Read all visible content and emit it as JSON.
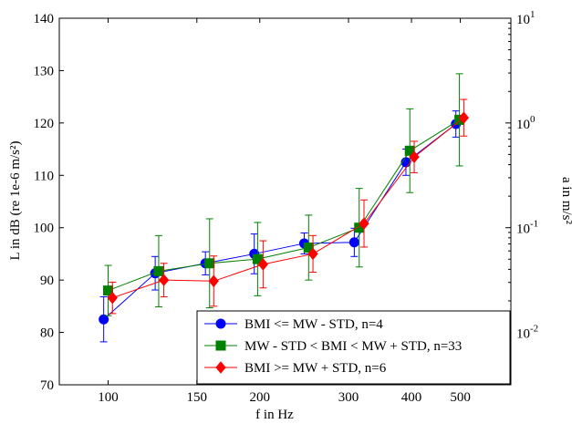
{
  "chart_data": {
    "type": "line",
    "xlabel": "f in Hz",
    "ylabel": "L in dB (re 1e-6 m/s²)",
    "ylabel_right": "a in m/s²",
    "x_scale": "log",
    "x_ticks": [
      100,
      150,
      200,
      300,
      400,
      500
    ],
    "x_tick_labels": [
      "100",
      "150",
      "200",
      "300",
      "400",
      "500"
    ],
    "xlim": [
      80,
      630
    ],
    "ylim": [
      70,
      140
    ],
    "y_ticks": [
      70,
      80,
      90,
      100,
      110,
      120,
      130,
      140
    ],
    "y_tick_labels": [
      "70",
      "80",
      "90",
      "100",
      "110",
      "120",
      "130",
      "140"
    ],
    "right_axis": {
      "scale": "log",
      "ylim": [
        0.00316,
        10
      ],
      "major_ticks": [
        0.01,
        0.1,
        1,
        10
      ],
      "tick_labels": [
        {
          "base": "10",
          "exp": "-2"
        },
        {
          "base": "10",
          "exp": "-1"
        },
        {
          "base": "10",
          "exp": "0"
        },
        {
          "base": "10",
          "exp": "1"
        }
      ]
    },
    "grid": false,
    "legend_position": "bottom-right",
    "series": [
      {
        "name": "BMI <= MW - STD, n=4",
        "color": "#0000ff",
        "marker": "circle",
        "x": [
          98,
          124,
          156,
          195,
          245,
          308,
          390,
          490
        ],
        "y": [
          82.5,
          91.3,
          93.2,
          95.0,
          97.0,
          97.2,
          112.5,
          119.8
        ],
        "err": [
          4.3,
          3.2,
          2.2,
          3.8,
          2.0,
          2.7,
          2.5,
          2.5
        ]
      },
      {
        "name": "MW - STD < BMI < MW + STD, n=33",
        "color": "#008000",
        "marker": "square",
        "x": [
          100,
          126,
          159,
          198,
          250,
          315,
          397,
          498
        ],
        "y": [
          88.0,
          91.7,
          93.2,
          94.0,
          96.2,
          100.0,
          114.7,
          120.6
        ],
        "err": [
          4.8,
          6.8,
          8.5,
          7.0,
          6.2,
          7.5,
          8.0,
          8.8
        ]
      },
      {
        "name": "BMI >= MW + STD, n=6",
        "color": "#ff0000",
        "marker": "diamond",
        "x": [
          102,
          129,
          162,
          203,
          255,
          322,
          405,
          508
        ],
        "y": [
          86.6,
          90.0,
          89.8,
          93.0,
          95.0,
          100.8,
          113.5,
          121.0
        ],
        "err": [
          3.0,
          3.2,
          4.8,
          4.5,
          3.5,
          4.5,
          3.0,
          3.5
        ]
      }
    ]
  }
}
